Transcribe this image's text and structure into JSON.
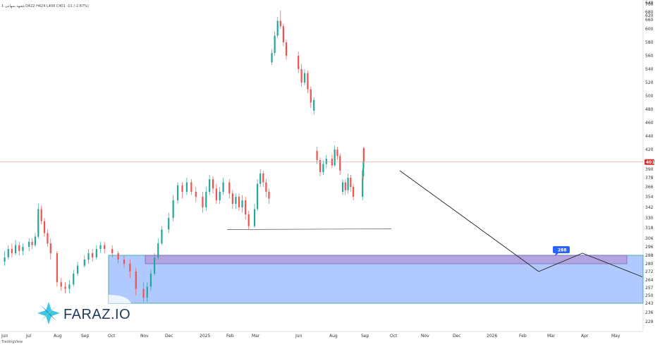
{
  "header": {
    "symbol_line": "1 غشهد سهامی",
    "ohlc": "O422 H424 L400 C401 -11 (-2.67%)"
  },
  "price": {
    "last": "401",
    "last_value": 401,
    "axis_color": "#d32f2f"
  },
  "branding": {
    "logo_text": "FARAZ.IO",
    "tradingview": "TradingView"
  },
  "zone": {
    "badge": "288",
    "zone_bottom": 243,
    "zone_top": 288,
    "band_bottom": 280,
    "band_top": 288
  },
  "colors": {
    "up": "#26a69a",
    "down": "#ef5350",
    "zone_fill": "#8fb4ff",
    "band_fill": "#b39ddb",
    "badge": "#2962ff",
    "logo_icon": "#29c0e0"
  },
  "chart_data": {
    "type": "candlestick",
    "y_ticks": [
      229,
      236,
      243,
      250,
      257,
      264,
      272,
      280,
      288,
      296,
      306,
      318,
      330,
      342,
      354,
      366,
      378,
      390,
      420,
      440,
      460,
      480,
      500,
      520,
      540,
      560,
      580,
      600,
      620,
      640,
      660,
      680,
      700
    ],
    "x_ticks": [
      "Jun",
      "Jul",
      "Aug",
      "Sep",
      "Oct",
      "Nov",
      "Dec",
      "2025",
      "Feb",
      "Mar",
      "Jun",
      "Aug",
      "Sep",
      "Oct",
      "Nov",
      "Dec",
      "2026",
      "Feb",
      "Mar",
      "Apr",
      "May"
    ],
    "support_level": 316,
    "projection_path": [
      {
        "date": "Oct 2025",
        "price": 388
      },
      {
        "date": "Feb 2026",
        "price": 272
      },
      {
        "date": "Apr 2026",
        "price": 290
      },
      {
        "date": "May 2026",
        "price": 267
      }
    ],
    "candles": [
      {
        "p": "Jun 2024",
        "o": 282,
        "c": 286,
        "h": 292,
        "l": 278
      },
      {
        "p": "Jun 2024",
        "o": 286,
        "c": 294,
        "h": 298,
        "l": 284
      },
      {
        "p": "Jun 2024",
        "o": 294,
        "c": 290,
        "h": 300,
        "l": 286
      },
      {
        "p": "Jun 2024",
        "o": 290,
        "c": 298,
        "h": 304,
        "l": 288
      },
      {
        "p": "Jun 2024",
        "o": 298,
        "c": 292,
        "h": 302,
        "l": 288
      },
      {
        "p": "Jun 2024",
        "o": 292,
        "c": 296,
        "h": 300,
        "l": 288
      },
      {
        "p": "Jul 2024",
        "o": 296,
        "c": 302,
        "h": 306,
        "l": 292
      },
      {
        "p": "Jul 2024",
        "o": 302,
        "c": 298,
        "h": 306,
        "l": 294
      },
      {
        "p": "Jul 2024",
        "o": 298,
        "c": 308,
        "h": 312,
        "l": 296
      },
      {
        "p": "Jul 2024",
        "o": 308,
        "c": 340,
        "h": 346,
        "l": 306
      },
      {
        "p": "Jul 2024",
        "o": 340,
        "c": 326,
        "h": 344,
        "l": 322
      },
      {
        "p": "Jul 2024",
        "o": 326,
        "c": 312,
        "h": 330,
        "l": 308
      },
      {
        "p": "Jul 2024",
        "o": 312,
        "c": 300,
        "h": 316,
        "l": 296
      },
      {
        "p": "Jul 2024",
        "o": 300,
        "c": 290,
        "h": 306,
        "l": 284
      },
      {
        "p": "Aug 2024",
        "o": 290,
        "c": 262,
        "h": 292,
        "l": 258
      },
      {
        "p": "Aug 2024",
        "o": 262,
        "c": 258,
        "h": 266,
        "l": 254
      },
      {
        "p": "Aug 2024",
        "o": 258,
        "c": 256,
        "h": 262,
        "l": 252
      },
      {
        "p": "Aug 2024",
        "o": 256,
        "c": 260,
        "h": 264,
        "l": 252
      },
      {
        "p": "Aug 2024",
        "o": 260,
        "c": 270,
        "h": 274,
        "l": 258
      },
      {
        "p": "Aug 2024",
        "o": 270,
        "c": 278,
        "h": 282,
        "l": 268
      },
      {
        "p": "Sep 2024",
        "o": 278,
        "c": 284,
        "h": 288,
        "l": 276
      },
      {
        "p": "Sep 2024",
        "o": 284,
        "c": 290,
        "h": 294,
        "l": 280
      },
      {
        "p": "Sep 2024",
        "o": 290,
        "c": 286,
        "h": 294,
        "l": 282
      },
      {
        "p": "Sep 2024",
        "o": 286,
        "c": 294,
        "h": 298,
        "l": 284
      },
      {
        "p": "Sep 2024",
        "o": 294,
        "c": 298,
        "h": 302,
        "l": 290
      },
      {
        "p": "Sep 2024",
        "o": 298,
        "c": 294,
        "h": 302,
        "l": 290
      },
      {
        "p": "Oct 2024",
        "o": 294,
        "c": 290,
        "h": 298,
        "l": 286
      },
      {
        "p": "Oct 2024",
        "o": 290,
        "c": 284,
        "h": 292,
        "l": 280
      },
      {
        "p": "Oct 2024",
        "o": 284,
        "c": 280,
        "h": 288,
        "l": 276
      },
      {
        "p": "Oct 2024",
        "o": 280,
        "c": 272,
        "h": 284,
        "l": 266
      },
      {
        "p": "Oct 2024",
        "o": 272,
        "c": 256,
        "h": 276,
        "l": 250
      },
      {
        "p": "Nov 2024",
        "o": 256,
        "c": 248,
        "h": 262,
        "l": 244
      },
      {
        "p": "Nov 2024",
        "o": 248,
        "c": 258,
        "h": 262,
        "l": 244
      },
      {
        "p": "Nov 2024",
        "o": 258,
        "c": 270,
        "h": 274,
        "l": 254
      },
      {
        "p": "Nov 2024",
        "o": 270,
        "c": 286,
        "h": 290,
        "l": 268
      },
      {
        "p": "Nov 2024",
        "o": 286,
        "c": 300,
        "h": 306,
        "l": 284
      },
      {
        "p": "Nov 2024",
        "o": 300,
        "c": 316,
        "h": 320,
        "l": 298
      },
      {
        "p": "Dec 2024",
        "o": 316,
        "c": 330,
        "h": 336,
        "l": 312
      },
      {
        "p": "Dec 2024",
        "o": 330,
        "c": 350,
        "h": 356,
        "l": 326
      },
      {
        "p": "Dec 2024",
        "o": 350,
        "c": 368,
        "h": 372,
        "l": 346
      },
      {
        "p": "Dec 2024",
        "o": 368,
        "c": 360,
        "h": 372,
        "l": 352
      },
      {
        "p": "Dec 2024",
        "o": 360,
        "c": 372,
        "h": 378,
        "l": 356
      },
      {
        "p": "Dec 2024",
        "o": 372,
        "c": 360,
        "h": 376,
        "l": 356
      },
      {
        "p": "Dec 2024",
        "o": 360,
        "c": 354,
        "h": 366,
        "l": 348
      },
      {
        "p": "2025",
        "o": 354,
        "c": 342,
        "h": 360,
        "l": 336
      },
      {
        "p": "2025",
        "o": 342,
        "c": 360,
        "h": 366,
        "l": 338
      },
      {
        "p": "2025",
        "o": 360,
        "c": 376,
        "h": 382,
        "l": 356
      },
      {
        "p": "2025",
        "o": 376,
        "c": 364,
        "h": 380,
        "l": 358
      },
      {
        "p": "2025",
        "o": 364,
        "c": 350,
        "h": 370,
        "l": 346
      },
      {
        "p": "2025",
        "o": 350,
        "c": 360,
        "h": 366,
        "l": 346
      },
      {
        "p": "2025",
        "o": 360,
        "c": 372,
        "h": 378,
        "l": 356
      },
      {
        "p": "Feb 2025",
        "o": 372,
        "c": 358,
        "h": 376,
        "l": 352
      },
      {
        "p": "Feb 2025",
        "o": 358,
        "c": 346,
        "h": 362,
        "l": 340
      },
      {
        "p": "Feb 2025",
        "o": 346,
        "c": 354,
        "h": 358,
        "l": 340
      },
      {
        "p": "Feb 2025",
        "o": 354,
        "c": 342,
        "h": 358,
        "l": 338
      },
      {
        "p": "Feb 2025",
        "o": 342,
        "c": 350,
        "h": 356,
        "l": 336
      },
      {
        "p": "Feb 2025",
        "o": 350,
        "c": 334,
        "h": 354,
        "l": 328
      },
      {
        "p": "Feb 2025",
        "o": 334,
        "c": 320,
        "h": 338,
        "l": 316
      },
      {
        "p": "Mar 2025",
        "o": 320,
        "c": 340,
        "h": 346,
        "l": 318
      },
      {
        "p": "Mar 2025",
        "o": 340,
        "c": 370,
        "h": 376,
        "l": 338
      },
      {
        "p": "Mar 2025",
        "o": 370,
        "c": 384,
        "h": 390,
        "l": 366
      },
      {
        "p": "Mar 2025",
        "o": 384,
        "c": 372,
        "h": 388,
        "l": 366
      },
      {
        "p": "Mar 2025",
        "o": 372,
        "c": 360,
        "h": 376,
        "l": 354
      },
      {
        "p": "Mar 2025",
        "o": 360,
        "c": 352,
        "h": 364,
        "l": 346
      },
      {
        "p": "Mar 2025",
        "o": 550,
        "c": 564,
        "h": 570,
        "l": 546
      },
      {
        "p": "Mar 2025",
        "o": 564,
        "c": 590,
        "h": 596,
        "l": 560
      },
      {
        "p": "Mar 2025",
        "o": 590,
        "c": 612,
        "h": 618,
        "l": 586
      },
      {
        "p": "Mar 2025",
        "o": 612,
        "c": 604,
        "h": 628,
        "l": 600
      },
      {
        "p": "Mar 2025",
        "o": 604,
        "c": 580,
        "h": 608,
        "l": 574
      },
      {
        "p": "Mar 2025",
        "o": 580,
        "c": 560,
        "h": 584,
        "l": 554
      },
      {
        "p": "Jun 2025",
        "o": 560,
        "c": 540,
        "h": 566,
        "l": 534
      },
      {
        "p": "Jun 2025",
        "o": 540,
        "c": 520,
        "h": 548,
        "l": 514
      },
      {
        "p": "Jun 2025",
        "o": 520,
        "c": 534,
        "h": 540,
        "l": 516
      },
      {
        "p": "Jun 2025",
        "o": 534,
        "c": 510,
        "h": 538,
        "l": 504
      },
      {
        "p": "Jun 2025",
        "o": 510,
        "c": 490,
        "h": 514,
        "l": 482
      },
      {
        "p": "Jun 2025",
        "o": 478,
        "c": 494,
        "h": 498,
        "l": 472
      },
      {
        "p": "Jun 2025",
        "o": 418,
        "c": 404,
        "h": 424,
        "l": 398
      },
      {
        "p": "Jun 2025",
        "o": 404,
        "c": 386,
        "h": 408,
        "l": 380
      },
      {
        "p": "Jun 2025",
        "o": 386,
        "c": 398,
        "h": 404,
        "l": 382
      },
      {
        "p": "Jun 2025",
        "o": 398,
        "c": 406,
        "h": 412,
        "l": 392
      },
      {
        "p": "Aug 2025",
        "o": 406,
        "c": 396,
        "h": 412,
        "l": 392
      },
      {
        "p": "Aug 2025",
        "o": 396,
        "c": 420,
        "h": 426,
        "l": 394
      },
      {
        "p": "Aug 2025",
        "o": 420,
        "c": 410,
        "h": 424,
        "l": 404
      },
      {
        "p": "Aug 2025",
        "o": 410,
        "c": 388,
        "h": 414,
        "l": 382
      },
      {
        "p": "Aug 2025",
        "o": 360,
        "c": 372,
        "h": 376,
        "l": 356
      },
      {
        "p": "Aug 2025",
        "o": 372,
        "c": 362,
        "h": 376,
        "l": 356
      },
      {
        "p": "Aug 2025",
        "o": 362,
        "c": 378,
        "h": 384,
        "l": 358
      },
      {
        "p": "Aug 2025",
        "o": 378,
        "c": 366,
        "h": 382,
        "l": 360
      },
      {
        "p": "Aug 2025",
        "o": 366,
        "c": 354,
        "h": 370,
        "l": 350
      },
      {
        "p": "Sep 2025",
        "o": 354,
        "c": 376,
        "h": 380,
        "l": 350
      },
      {
        "p": "Sep 2025",
        "o": 376,
        "c": 388,
        "h": 392,
        "l": 372
      },
      {
        "p": "Sep 2025",
        "o": 388,
        "c": 380,
        "h": 392,
        "l": 374
      },
      {
        "p": "Sep 2025",
        "o": 380,
        "c": 392,
        "h": 398,
        "l": 376
      },
      {
        "p": "Sep 2025",
        "o": 392,
        "c": 402,
        "h": 408,
        "l": 388
      },
      {
        "p": "Sep 2025",
        "o": 422,
        "c": 401,
        "h": 424,
        "l": 400
      }
    ]
  }
}
